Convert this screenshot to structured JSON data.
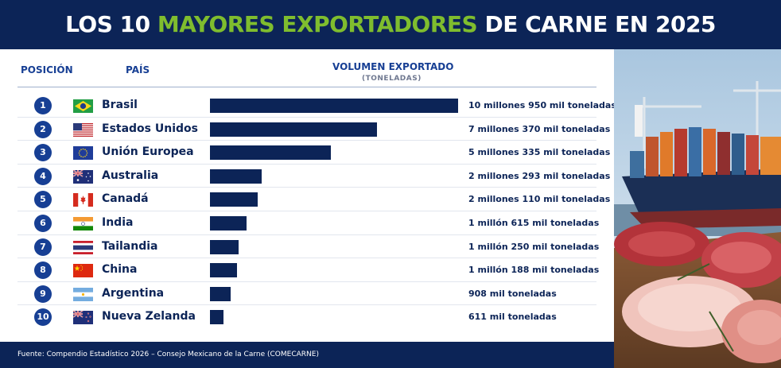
{
  "title": {
    "part1": "LOS 10 ",
    "highlight": "MAYORES EXPORTADORES",
    "part2": " DE CARNE EN 2025"
  },
  "headers": {
    "position": "POSICIÓN",
    "country": "PAÍS",
    "volume": "VOLUMEN EXPORTADO",
    "unit": "(TONELADAS)"
  },
  "colors": {
    "navy": "#0c2457",
    "accent_green": "#7fbd2e",
    "rank_blue": "#173f94"
  },
  "chart_data": {
    "type": "bar",
    "orientation": "horizontal",
    "categories": [
      "Brasil",
      "Estados Unidos",
      "Unión Europea",
      "Australia",
      "Canadá",
      "India",
      "Tailandia",
      "China",
      "Argentina",
      "Nueva Zelanda"
    ],
    "values": [
      10950000,
      7370000,
      5335000,
      2293000,
      2110000,
      1615000,
      1250000,
      1188000,
      908000,
      611000
    ],
    "ranks": [
      "1",
      "2",
      "3",
      "4",
      "5",
      "6",
      "7",
      "8",
      "9",
      "10"
    ],
    "value_labels": [
      "10 millones 950 mil toneladas",
      "7 millones 370 mil toneladas",
      "5 millones 335 mil toneladas",
      "2 millones 293 mil toneladas",
      "2 millones 110 mil toneladas",
      "1 millón 615 mil toneladas",
      "1 millón 250 mil toneladas",
      "1 millón 188 mil toneladas",
      "908 mil toneladas",
      "611 mil toneladas"
    ],
    "flags": [
      "brazil-flag-icon",
      "usa-flag-icon",
      "eu-flag-icon",
      "australia-flag-icon",
      "canada-flag-icon",
      "india-flag-icon",
      "thailand-flag-icon",
      "china-flag-icon",
      "argentina-flag-icon",
      "new-zealand-flag-icon"
    ],
    "bar_color": "#0c2457"
  },
  "footer": {
    "source": "Fuente: Compendio Estadístico 2026 – Consejo Mexicano de la Carne (COMECARNE)"
  },
  "photo": {
    "description_icon": "cargo-ship-and-meat-illustration"
  }
}
